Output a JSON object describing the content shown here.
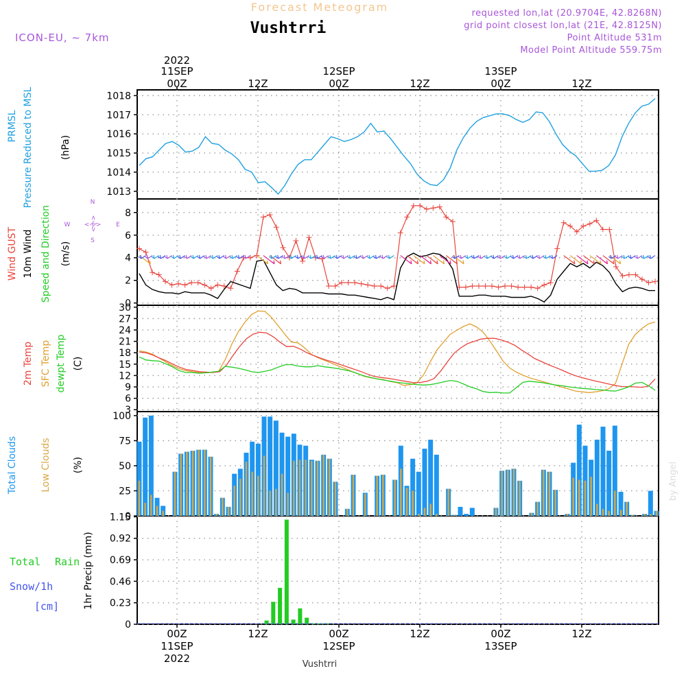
{
  "header": {
    "product": "Forecast Meteogram",
    "location": "Vushtrri",
    "model": "ICON-EU, ~ 7km",
    "requested": "requested lon,lat (20.9704E, 42.8268N)",
    "gridpoint": "grid point closest lon,lat (21E, 42.8125N)",
    "point_alt": "Point Altitude 531m",
    "model_alt": "Model Point Altitude 559.75m",
    "footer_location": "Vushtrri",
    "credit": "by Angel"
  },
  "time_axis": {
    "top_labels": [
      {
        "l1": "2022",
        "l2": "11SEP",
        "l3": "00Z"
      },
      {
        "l1": "",
        "l2": "",
        "l3": "12Z"
      },
      {
        "l1": "",
        "l2": "12SEP",
        "l3": "00Z"
      },
      {
        "l1": "",
        "l2": "",
        "l3": "12Z"
      },
      {
        "l1": "",
        "l2": "13SEP",
        "l3": "00Z"
      },
      {
        "l1": "",
        "l2": "",
        "l3": "12Z"
      }
    ],
    "bottom_labels": [
      {
        "l1": "00Z",
        "l2": "11SEP",
        "l3": "2022"
      },
      {
        "l1": "12Z",
        "l2": "",
        "l3": ""
      },
      {
        "l1": "00Z",
        "l2": "12SEP",
        "l3": ""
      },
      {
        "l1": "12Z",
        "l2": "",
        "l3": ""
      },
      {
        "l1": "00Z",
        "l2": "13SEP",
        "l3": ""
      },
      {
        "l1": "12Z",
        "l2": "",
        "l3": ""
      }
    ],
    "hours": [
      0,
      12,
      24,
      36,
      48,
      60
    ]
  },
  "panels": {
    "pressure": {
      "label1": "PRMSL",
      "label2": "Pressure Reduced to MSL",
      "unit": "(hPa)"
    },
    "wind": {
      "label_gust": "Wind GUST",
      "label_10m": "10m Wind",
      "label_dir": "Speed and Direction",
      "unit": "(m/s)",
      "compass_n": "N",
      "compass_s": "S",
      "compass_e": "E",
      "compass_w": "W",
      "compass_arrow": "<-|->"
    },
    "temp": {
      "label_2m": "2m Temp",
      "label_sfc": "SFC Temp",
      "label_dew": "dewpt Temp",
      "unit": "(C)"
    },
    "clouds": {
      "label_total": "Total Clouds",
      "label_low": "Low Clouds",
      "unit": "(%)"
    },
    "precip": {
      "label_rain": "Total",
      "label_rain2": "Rain",
      "label_snow": "Snow/1h",
      "label_cm": "[cm]",
      "ylabel": "1hr Precip (mm)"
    }
  },
  "colors": {
    "pressure": "#1ea0e0",
    "gust": "#e8443c",
    "wind": "#000000",
    "t2m": "#e8443c",
    "sfc": "#e0a030",
    "dew": "#22cc22",
    "total_clouds": "#1e96f0",
    "low_clouds": "#d6a845",
    "rain": "#22cc22",
    "purple": "#a856d8",
    "snow": "#4455ee"
  },
  "chart_data": [
    {
      "type": "line",
      "name": "pressure",
      "ylim": [
        1012.6,
        1018.3
      ],
      "yticks": [
        1013,
        1014,
        1015,
        1016,
        1017,
        1018
      ],
      "series": [
        {
          "name": "PRMSL",
          "values": [
            1014.35,
            1014.7,
            1014.8,
            1015.15,
            1015.5,
            1015.6,
            1015.4,
            1015.05,
            1015.1,
            1015.3,
            1015.85,
            1015.5,
            1015.45,
            1015.15,
            1014.95,
            1014.65,
            1014.15,
            1014.0,
            1013.45,
            1013.5,
            1013.2,
            1012.85,
            1013.3,
            1013.9,
            1014.4,
            1014.65,
            1014.65,
            1015.05,
            1015.45,
            1015.85,
            1015.75,
            1015.6,
            1015.7,
            1015.85,
            1016.1,
            1016.55,
            1016.1,
            1016.15,
            1015.75,
            1015.3,
            1014.85,
            1014.45,
            1013.9,
            1013.55,
            1013.35,
            1013.3,
            1013.6,
            1014.2,
            1015.15,
            1015.8,
            1016.3,
            1016.65,
            1016.85,
            1016.95,
            1017.05,
            1017.05,
            1016.95,
            1016.75,
            1016.6,
            1016.75,
            1017.15,
            1017.1,
            1016.65,
            1016.0,
            1015.45,
            1015.1,
            1014.85,
            1014.45,
            1014.05,
            1014.05,
            1014.1,
            1014.35,
            1014.9,
            1015.85,
            1016.55,
            1017.1,
            1017.45,
            1017.55,
            1017.85
          ]
        }
      ]
    },
    {
      "type": "line",
      "name": "wind",
      "ylim": [
        -0.2,
        9.2
      ],
      "yticks": [
        0,
        2,
        4,
        6,
        8
      ],
      "series": [
        {
          "name": "Wind GUST",
          "values": [
            4.8,
            4.5,
            2.7,
            2.5,
            1.9,
            1.6,
            1.7,
            1.6,
            1.8,
            1.8,
            1.6,
            1.3,
            1.6,
            1.5,
            1.3,
            2.8,
            4.0,
            4.0,
            4.2,
            7.6,
            7.8,
            6.7,
            4.9,
            4.0,
            5.5,
            3.7,
            5.8,
            4.0,
            3.9,
            1.5,
            1.5,
            1.8,
            1.8,
            1.8,
            1.7,
            1.6,
            1.5,
            1.5,
            1.3,
            1.5,
            6.2,
            7.6,
            8.6,
            8.6,
            8.3,
            8.4,
            8.5,
            7.6,
            7.2,
            1.4,
            1.4,
            1.5,
            1.5,
            1.5,
            1.5,
            1.4,
            1.5,
            1.5,
            1.4,
            1.4,
            1.4,
            1.3,
            1.6,
            1.8,
            4.8,
            7.1,
            6.8,
            6.3,
            6.8,
            7.0,
            7.3,
            6.5,
            6.5,
            3.2,
            2.4,
            2.5,
            2.5,
            2.1,
            1.8,
            1.9
          ]
        },
        {
          "name": "10m Wind",
          "values": [
            2.6,
            1.6,
            1.2,
            1.0,
            0.9,
            0.9,
            0.8,
            1.0,
            0.9,
            0.9,
            0.9,
            0.7,
            0.4,
            1.2,
            1.9,
            1.7,
            1.5,
            1.3,
            3.7,
            3.8,
            2.7,
            1.6,
            1.1,
            1.3,
            1.2,
            0.9,
            0.9,
            0.9,
            0.9,
            0.8,
            0.8,
            0.8,
            0.7,
            0.7,
            0.6,
            0.5,
            0.4,
            0.3,
            0.5,
            0.3,
            3.1,
            4.1,
            4.4,
            4.1,
            4.2,
            4.4,
            4.3,
            3.9,
            3.0,
            0.6,
            0.6,
            0.6,
            0.7,
            0.7,
            0.6,
            0.6,
            0.6,
            0.5,
            0.5,
            0.5,
            0.6,
            0.4,
            0.1,
            0.7,
            2.1,
            2.8,
            3.5,
            3.2,
            3.5,
            3.1,
            3.6,
            3.3,
            2.7,
            1.7,
            1.0,
            1.3,
            1.4,
            1.3,
            1.1,
            1.1
          ]
        }
      ]
    },
    {
      "type": "line",
      "name": "temperature",
      "ylim": [
        2.5,
        30.5
      ],
      "yticks": [
        3,
        6,
        9,
        12,
        15,
        18,
        21,
        24,
        27,
        30
      ],
      "series": [
        {
          "name": "2m Temp",
          "values": [
            18.2,
            18.0,
            17.4,
            16.6,
            15.9,
            15.0,
            14.2,
            13.6,
            13.3,
            13.0,
            12.9,
            12.8,
            13.0,
            14.7,
            17.3,
            19.7,
            21.7,
            22.9,
            23.4,
            23.2,
            22.2,
            20.8,
            19.6,
            19.7,
            19.0,
            18.0,
            17.3,
            16.6,
            16.0,
            15.5,
            14.9,
            14.3,
            13.7,
            13.1,
            12.4,
            11.8,
            11.5,
            11.3,
            11.0,
            10.7,
            10.4,
            10.1,
            10.2,
            10.5,
            11.2,
            13.2,
            15.6,
            17.9,
            19.3,
            20.4,
            21.0,
            21.6,
            21.8,
            21.8,
            21.4,
            20.8,
            20.0,
            18.8,
            17.7,
            16.5,
            15.7,
            14.9,
            14.2,
            13.5,
            12.7,
            12.0,
            11.5,
            11.0,
            10.6,
            10.2,
            9.8,
            9.4,
            9.1,
            9.1,
            9.0,
            8.9,
            9.2,
            11.1
          ]
        },
        {
          "name": "SFC Temp",
          "values": [
            18.5,
            18.2,
            17.6,
            16.6,
            15.6,
            14.6,
            13.8,
            13.3,
            13.0,
            12.8,
            12.7,
            12.8,
            13.1,
            16.2,
            20.3,
            23.6,
            26.1,
            28.1,
            29.0,
            28.9,
            27.3,
            25.1,
            22.9,
            20.8,
            20.6,
            19.3,
            17.6,
            16.7,
            16.0,
            15.3,
            14.6,
            13.9,
            13.2,
            12.5,
            11.8,
            11.4,
            11.1,
            10.9,
            10.4,
            10.1,
            9.4,
            9.6,
            10.1,
            12.2,
            15.6,
            18.7,
            20.8,
            22.8,
            23.9,
            24.9,
            25.6,
            24.8,
            23.4,
            21.1,
            18.5,
            15.8,
            14.0,
            12.9,
            12.1,
            11.4,
            10.9,
            10.4,
            9.9,
            9.4,
            8.9,
            8.4,
            7.9,
            7.7,
            7.5,
            7.7,
            8.0,
            8.5,
            9.9,
            15.0,
            20.2,
            22.8,
            24.4,
            25.6,
            26.1
          ]
        },
        {
          "name": "dewpt Temp",
          "values": [
            16.9,
            16.1,
            15.9,
            15.8,
            15.1,
            14.3,
            13.3,
            12.8,
            12.8,
            12.6,
            12.7,
            12.9,
            13.1,
            14.4,
            14.2,
            13.9,
            13.5,
            13.0,
            12.8,
            13.1,
            13.5,
            14.2,
            14.8,
            14.9,
            14.5,
            14.3,
            14.3,
            14.6,
            14.3,
            14.1,
            13.8,
            13.5,
            13.1,
            12.5,
            11.9,
            11.5,
            11.1,
            10.8,
            10.5,
            10.2,
            10.0,
            9.8,
            9.6,
            9.5,
            9.6,
            9.9,
            10.3,
            10.7,
            10.5,
            9.8,
            9.0,
            8.5,
            7.8,
            7.5,
            7.6,
            7.4,
            7.4,
            8.8,
            10.2,
            10.5,
            10.3,
            10.1,
            9.8,
            9.5,
            9.3,
            9.0,
            8.8,
            8.6,
            8.5,
            8.3,
            8.2,
            8.0,
            7.9,
            8.4,
            9.0,
            10.0,
            10.2,
            9.3,
            8.1
          ]
        }
      ]
    },
    {
      "type": "bar",
      "name": "clouds",
      "ylim": [
        0,
        104
      ],
      "yticks": [
        0,
        25,
        50,
        75,
        100
      ],
      "series": [
        {
          "name": "Total Clouds",
          "values": [
            74,
            98,
            100,
            18,
            10,
            0,
            44,
            62,
            64,
            65,
            66,
            66,
            59,
            2,
            18,
            9,
            42,
            47,
            63,
            74,
            72,
            99,
            99,
            95,
            83,
            79,
            82,
            71,
            70,
            56,
            55,
            61,
            57,
            34,
            0,
            7,
            41,
            0,
            23,
            0,
            40,
            41,
            0,
            36,
            70,
            30,
            57,
            44,
            67,
            76,
            61,
            0,
            27,
            1,
            9,
            2,
            8,
            0,
            0,
            0,
            8,
            45,
            46,
            47,
            35,
            0,
            3,
            14,
            46,
            44,
            26,
            0,
            2,
            53,
            91,
            70,
            56,
            76,
            89,
            65,
            90,
            24,
            14,
            1,
            0,
            2,
            25,
            5
          ]
        },
        {
          "name": "Low Clouds",
          "values": [
            35,
            13,
            21,
            10,
            5,
            0,
            44,
            62,
            64,
            65,
            66,
            66,
            59,
            2,
            18,
            9,
            30,
            37,
            54,
            44,
            40,
            60,
            25,
            27,
            42,
            23,
            55,
            56,
            56,
            55,
            55,
            61,
            57,
            34,
            0,
            7,
            41,
            0,
            22,
            0,
            40,
            41,
            0,
            36,
            47,
            28,
            25,
            2,
            8,
            12,
            2,
            0,
            27,
            1,
            0,
            0,
            0,
            0,
            0,
            0,
            8,
            45,
            46,
            47,
            35,
            0,
            3,
            14,
            46,
            44,
            26,
            0,
            2,
            38,
            36,
            35,
            39,
            12,
            7,
            5,
            25,
            6,
            14,
            1,
            0,
            2,
            2,
            5
          ]
        }
      ]
    },
    {
      "type": "bar",
      "name": "precip",
      "ylim": [
        0,
        1.16
      ],
      "yticks": [
        0,
        0.23,
        0.46,
        0.69,
        0.92,
        1.15
      ],
      "series": [
        {
          "name": "Total Rain",
          "values": [
            0,
            0,
            0,
            0,
            0,
            0,
            0,
            0,
            0,
            0,
            0,
            0,
            0,
            0,
            0,
            0,
            0,
            0,
            0,
            0.04,
            0.24,
            0.39,
            1.12,
            0.05,
            0.17,
            0.07,
            0.01,
            0.01,
            0.01,
            0,
            0,
            0,
            0,
            0,
            0,
            0,
            0,
            0,
            0,
            0,
            0,
            0,
            0,
            0,
            0,
            0,
            0,
            0,
            0,
            0,
            0,
            0,
            0,
            0,
            0,
            0,
            0,
            0,
            0,
            0,
            0,
            0,
            0,
            0,
            0,
            0,
            0,
            0,
            0,
            0,
            0,
            0,
            0,
            0,
            0,
            0,
            0,
            0
          ]
        }
      ]
    }
  ]
}
